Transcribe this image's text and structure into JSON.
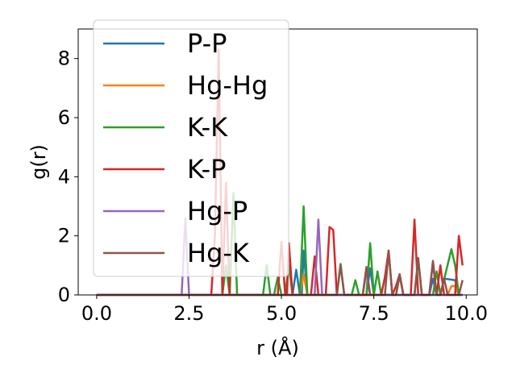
{
  "chart_data": {
    "type": "line",
    "xlabel": "r (Å)",
    "ylabel": "g(r)",
    "xlim": [
      -0.5,
      10.3
    ],
    "ylim": [
      0,
      9.0
    ],
    "xticks": [
      0.0,
      2.5,
      5.0,
      7.5,
      10.0
    ],
    "xtick_labels": [
      "0.0",
      "2.5",
      "5.0",
      "7.5",
      "10.0"
    ],
    "yticks": [
      0,
      2,
      4,
      6,
      8
    ],
    "ytick_labels": [
      "0",
      "2",
      "4",
      "6",
      "8"
    ],
    "grid": false,
    "legend_position": "top-left",
    "series": [
      {
        "name": "P-P",
        "color": "#1f77b4",
        "points": [
          [
            0,
            0
          ],
          [
            5.3,
            0
          ],
          [
            5.4,
            0.85
          ],
          [
            5.5,
            0
          ],
          [
            5.55,
            0
          ],
          [
            5.6,
            1.5
          ],
          [
            5.7,
            0
          ],
          [
            7.3,
            0
          ],
          [
            7.4,
            0.9
          ],
          [
            7.5,
            0
          ],
          [
            9.0,
            0
          ],
          [
            9.1,
            0.55
          ],
          [
            9.2,
            0
          ],
          [
            9.3,
            0
          ],
          [
            9.4,
            0.55
          ],
          [
            9.7,
            0.5
          ],
          [
            9.8,
            0
          ],
          [
            9.9,
            0
          ]
        ]
      },
      {
        "name": "Hg-Hg",
        "color": "#ff7f0e",
        "points": [
          [
            0,
            0
          ],
          [
            5.5,
            0
          ],
          [
            5.6,
            0.7
          ],
          [
            5.7,
            0
          ],
          [
            9.5,
            0
          ],
          [
            9.6,
            0.3
          ],
          [
            9.7,
            0.3
          ],
          [
            9.8,
            0
          ]
        ]
      },
      {
        "name": "K-K",
        "color": "#2ca02c",
        "points": [
          [
            0,
            0
          ],
          [
            3.4,
            0
          ],
          [
            3.5,
            1.0
          ],
          [
            3.6,
            0
          ],
          [
            3.7,
            3.45
          ],
          [
            3.8,
            0
          ],
          [
            4.5,
            0
          ],
          [
            4.6,
            1.0
          ],
          [
            4.7,
            0
          ],
          [
            4.8,
            0
          ],
          [
            4.9,
            0.6
          ],
          [
            5.0,
            0
          ],
          [
            5.1,
            0
          ],
          [
            5.2,
            1.0
          ],
          [
            5.3,
            0
          ],
          [
            5.5,
            0
          ],
          [
            5.6,
            3.0
          ],
          [
            5.7,
            0
          ],
          [
            6.5,
            0
          ],
          [
            6.6,
            1.05
          ],
          [
            6.7,
            0
          ],
          [
            6.9,
            0
          ],
          [
            7.0,
            0.5
          ],
          [
            7.1,
            0
          ],
          [
            7.3,
            0
          ],
          [
            7.4,
            1.75
          ],
          [
            7.5,
            0
          ],
          [
            7.6,
            0.8
          ],
          [
            7.7,
            0
          ],
          [
            8.1,
            0
          ],
          [
            8.2,
            0.65
          ],
          [
            8.3,
            0
          ],
          [
            8.6,
            0
          ],
          [
            8.7,
            1.15
          ],
          [
            8.8,
            0
          ],
          [
            9.1,
            0
          ],
          [
            9.2,
            0.8
          ],
          [
            9.3,
            0
          ],
          [
            9.6,
            1.55
          ],
          [
            9.7,
            1.0
          ],
          [
            9.8,
            0
          ],
          [
            9.9,
            0
          ]
        ]
      },
      {
        "name": "K-P",
        "color": "#d62728",
        "points": [
          [
            0,
            0
          ],
          [
            3.1,
            0
          ],
          [
            3.2,
            2.0
          ],
          [
            3.3,
            8.3
          ],
          [
            3.4,
            0
          ],
          [
            3.5,
            3.8
          ],
          [
            3.6,
            0
          ],
          [
            4.9,
            0
          ],
          [
            5.0,
            1.8
          ],
          [
            5.1,
            0
          ],
          [
            5.15,
            0
          ],
          [
            5.2,
            1.75
          ],
          [
            5.3,
            0
          ],
          [
            5.8,
            0
          ],
          [
            5.9,
            1.3
          ],
          [
            6.0,
            0
          ],
          [
            6.2,
            0
          ],
          [
            6.3,
            2.3
          ],
          [
            6.4,
            2.2
          ],
          [
            6.5,
            0
          ],
          [
            7.7,
            0
          ],
          [
            7.8,
            0.6
          ],
          [
            7.9,
            1.5
          ],
          [
            8.0,
            0
          ],
          [
            8.1,
            0.3
          ],
          [
            8.2,
            0.7
          ],
          [
            8.3,
            0
          ],
          [
            8.5,
            0
          ],
          [
            8.6,
            2.55
          ],
          [
            8.7,
            0
          ],
          [
            9.0,
            0
          ],
          [
            9.1,
            1.1
          ],
          [
            9.2,
            0
          ],
          [
            9.3,
            1.0
          ],
          [
            9.4,
            0
          ],
          [
            9.7,
            0
          ],
          [
            9.8,
            2.0
          ],
          [
            9.9,
            1.0
          ]
        ]
      },
      {
        "name": "Hg-P",
        "color": "#9467bd",
        "points": [
          [
            0,
            0
          ],
          [
            2.3,
            0
          ],
          [
            2.4,
            2.6
          ],
          [
            2.5,
            0
          ],
          [
            5.9,
            0
          ],
          [
            6.0,
            2.55
          ],
          [
            6.1,
            0
          ],
          [
            7.2,
            0
          ],
          [
            7.3,
            0.8
          ],
          [
            7.4,
            0
          ],
          [
            9.9,
            0
          ]
        ]
      },
      {
        "name": "Hg-K",
        "color": "#8c564b",
        "points": [
          [
            0,
            0
          ],
          [
            6.5,
            0
          ],
          [
            6.6,
            1.0
          ],
          [
            6.7,
            0
          ],
          [
            7.2,
            0
          ],
          [
            7.3,
            0.95
          ],
          [
            7.4,
            0
          ],
          [
            7.8,
            0
          ],
          [
            7.9,
            1.5
          ],
          [
            8.0,
            0
          ],
          [
            8.1,
            0
          ],
          [
            8.2,
            0.7
          ],
          [
            8.3,
            0
          ],
          [
            8.6,
            0
          ],
          [
            8.7,
            1.25
          ],
          [
            8.8,
            0
          ],
          [
            9.0,
            0
          ],
          [
            9.1,
            1.15
          ],
          [
            9.2,
            0
          ],
          [
            9.3,
            0
          ],
          [
            9.4,
            0.55
          ],
          [
            9.5,
            0
          ],
          [
            9.8,
            0
          ],
          [
            9.9,
            0.5
          ]
        ]
      }
    ]
  }
}
